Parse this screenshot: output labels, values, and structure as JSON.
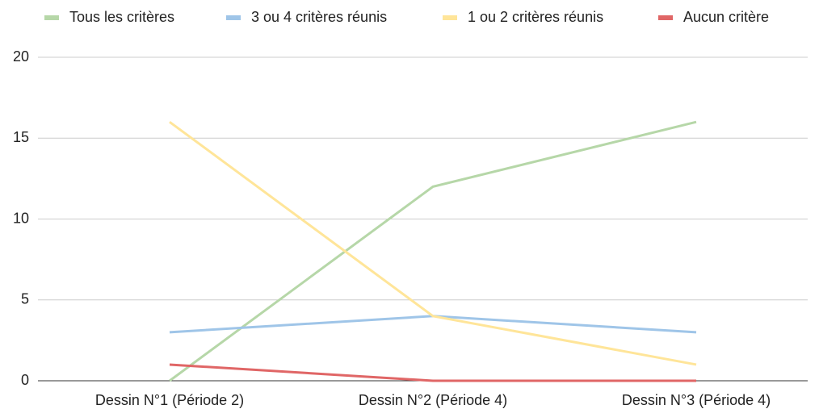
{
  "chart_data": {
    "type": "line",
    "categories": [
      "Dessin N°1 (Période 2)",
      "Dessin N°2 (Période 4)",
      "Dessin N°3 (Période 4)"
    ],
    "series": [
      {
        "name": "Tous les critères",
        "color": "#b6d7a8",
        "values": [
          0,
          12,
          16
        ]
      },
      {
        "name": "3 ou 4 critères réunis",
        "color": "#9fc5e8",
        "values": [
          3,
          4,
          3
        ]
      },
      {
        "name": "1 ou 2 critères réunis",
        "color": "#ffe599",
        "values": [
          16,
          4,
          1
        ]
      },
      {
        "name": "Aucun critère",
        "color": "#e06666",
        "values": [
          1,
          0,
          0
        ]
      }
    ],
    "ylim": [
      0,
      20
    ],
    "yticks": [
      0,
      5,
      10,
      15,
      20
    ],
    "grid": true,
    "legend": "top"
  }
}
